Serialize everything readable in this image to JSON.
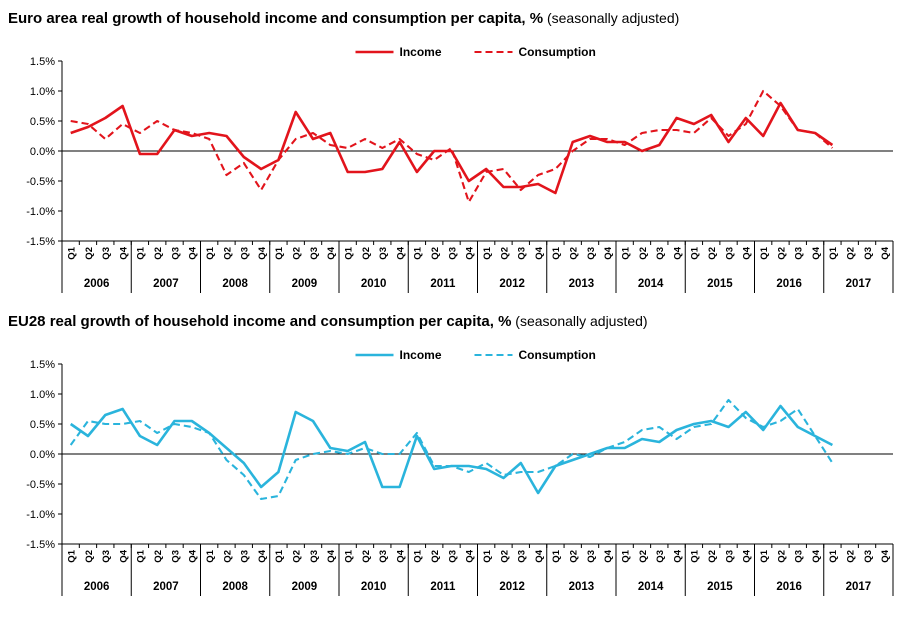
{
  "page": {
    "background": "#ffffff"
  },
  "chart_data": [
    {
      "type": "line",
      "title": "Euro area real growth of household income and consumption per capita, %",
      "title_suffix": " (seasonally adjusted)",
      "line_color": "#e2141c",
      "axis_color": "#000000",
      "grid": false,
      "legend_position": "top-center",
      "ylim": [
        -1.5,
        1.5
      ],
      "yticks": [
        1.5,
        1.0,
        0.5,
        0.0,
        -0.5,
        -1.0,
        -1.5
      ],
      "ytick_labels": [
        "1.5%",
        "1.0%",
        "0.5%",
        "0.0%",
        "-0.5%",
        "-1.0%",
        "-1.5%"
      ],
      "years": [
        "2006",
        "2007",
        "2008",
        "2009",
        "2010",
        "2011",
        "2012",
        "2013",
        "2014",
        "2015",
        "2016",
        "2017"
      ],
      "quarter_labels": [
        "Q1",
        "Q2",
        "Q3",
        "Q4",
        "Q1",
        "Q2",
        "Q3",
        "Q4",
        "Q1",
        "Q2",
        "Q3",
        "Q4",
        "Q1",
        "Q2",
        "Q3",
        "Q4",
        "Q1",
        "Q2",
        "Q3",
        "Q4",
        "Q1",
        "Q2",
        "Q3",
        "Q4",
        "Q1",
        "Q2",
        "Q3",
        "Q4",
        "Q1",
        "Q2",
        "Q3",
        "Q4",
        "Q1",
        "Q2",
        "Q3",
        "Q4",
        "Q1",
        "Q2",
        "Q3",
        "Q4",
        "Q1",
        "Q2",
        "Q3",
        "Q4",
        "Q1",
        "Q2",
        "Q3",
        "Q4"
      ],
      "series": [
        {
          "name": "Income",
          "style": "solid",
          "values": [
            0.3,
            0.4,
            0.55,
            0.75,
            -0.05,
            -0.05,
            0.35,
            0.25,
            0.3,
            0.25,
            -0.1,
            -0.3,
            -0.15,
            0.65,
            0.2,
            0.3,
            -0.35,
            -0.35,
            -0.3,
            0.15,
            -0.35,
            0.0,
            0.0,
            -0.5,
            -0.3,
            -0.6,
            -0.6,
            -0.55,
            -0.7,
            0.15,
            0.25,
            0.15,
            0.15,
            0.0,
            0.1,
            0.55,
            0.45,
            0.6,
            0.15,
            0.55,
            0.25,
            0.8,
            0.35,
            0.3,
            0.1
          ]
        },
        {
          "name": "Consumption",
          "style": "dashed",
          "values": [
            0.5,
            0.45,
            0.2,
            0.45,
            0.3,
            0.5,
            0.35,
            0.3,
            0.2,
            -0.4,
            -0.2,
            -0.65,
            -0.15,
            0.2,
            0.3,
            0.1,
            0.05,
            0.2,
            0.05,
            0.2,
            -0.05,
            -0.15,
            0.05,
            -0.85,
            -0.35,
            -0.3,
            -0.65,
            -0.4,
            -0.3,
            0.0,
            0.2,
            0.2,
            0.1,
            0.3,
            0.35,
            0.35,
            0.3,
            0.55,
            0.25,
            0.45,
            1.0,
            0.75,
            0.35,
            0.3,
            0.05
          ]
        }
      ]
    },
    {
      "type": "line",
      "title": "EU28 real growth of household income and consumption per capita, %",
      "title_suffix": " (seasonally adjusted)",
      "line_color": "#2ab4dc",
      "axis_color": "#000000",
      "grid": false,
      "legend_position": "top-center",
      "ylim": [
        -1.5,
        1.5
      ],
      "yticks": [
        1.5,
        1.0,
        0.5,
        0.0,
        -0.5,
        -1.0,
        -1.5
      ],
      "ytick_labels": [
        "1.5%",
        "1.0%",
        "0.5%",
        "0.0%",
        "-0.5%",
        "-1.0%",
        "-1.5%"
      ],
      "years": [
        "2006",
        "2007",
        "2008",
        "2009",
        "2010",
        "2011",
        "2012",
        "2013",
        "2014",
        "2015",
        "2016",
        "2017"
      ],
      "quarter_labels": [
        "Q1",
        "Q2",
        "Q3",
        "Q4",
        "Q1",
        "Q2",
        "Q3",
        "Q4",
        "Q1",
        "Q2",
        "Q3",
        "Q4",
        "Q1",
        "Q2",
        "Q3",
        "Q4",
        "Q1",
        "Q2",
        "Q3",
        "Q4",
        "Q1",
        "Q2",
        "Q3",
        "Q4",
        "Q1",
        "Q2",
        "Q3",
        "Q4",
        "Q1",
        "Q2",
        "Q3",
        "Q4",
        "Q1",
        "Q2",
        "Q3",
        "Q4",
        "Q1",
        "Q2",
        "Q3",
        "Q4",
        "Q1",
        "Q2",
        "Q3",
        "Q4",
        "Q1",
        "Q2",
        "Q3",
        "Q4"
      ],
      "series": [
        {
          "name": "Income",
          "style": "solid",
          "values": [
            0.5,
            0.3,
            0.65,
            0.75,
            0.3,
            0.15,
            0.55,
            0.55,
            0.35,
            0.1,
            -0.15,
            -0.55,
            -0.3,
            0.7,
            0.55,
            0.1,
            0.05,
            0.2,
            -0.55,
            -0.55,
            0.3,
            -0.25,
            -0.2,
            -0.2,
            -0.25,
            -0.4,
            -0.15,
            -0.65,
            -0.2,
            -0.1,
            0.0,
            0.1,
            0.1,
            0.25,
            0.2,
            0.4,
            0.5,
            0.55,
            0.45,
            0.7,
            0.4,
            0.8,
            0.45,
            0.3,
            0.15
          ]
        },
        {
          "name": "Consumption",
          "style": "dashed",
          "values": [
            0.15,
            0.55,
            0.5,
            0.5,
            0.55,
            0.35,
            0.5,
            0.45,
            0.35,
            -0.1,
            -0.35,
            -0.75,
            -0.7,
            -0.1,
            0.0,
            0.05,
            0.0,
            0.1,
            0.0,
            0.0,
            0.35,
            -0.2,
            -0.2,
            -0.3,
            -0.15,
            -0.35,
            -0.3,
            -0.3,
            -0.2,
            0.0,
            -0.05,
            0.1,
            0.2,
            0.4,
            0.45,
            0.25,
            0.45,
            0.5,
            0.9,
            0.6,
            0.45,
            0.55,
            0.75,
            0.3,
            -0.15
          ]
        }
      ]
    }
  ]
}
